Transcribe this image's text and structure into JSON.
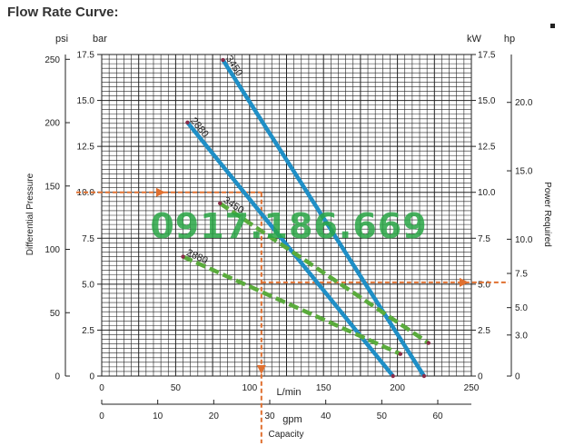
{
  "heading": "Flow Rate Curve:",
  "watermark": "0917.186.669",
  "chart_data": {
    "type": "line",
    "x_axes": [
      {
        "unit": "L/min",
        "min": 0,
        "max": 250,
        "ticks": [
          0,
          50,
          100,
          150,
          200,
          250
        ]
      },
      {
        "unit": "gpm",
        "min": 0,
        "max": 66,
        "ticks": [
          0,
          10,
          20,
          30,
          40,
          50,
          60
        ]
      }
    ],
    "xlabel": "Capacity",
    "left_axes": [
      {
        "unit": "psi",
        "min": 0,
        "max": 253.8,
        "ticks": [
          0,
          50,
          100,
          150,
          200,
          250
        ]
      },
      {
        "unit": "bar",
        "min": 0,
        "max": 17.5,
        "ticks": [
          "0",
          "2.5",
          "5.0",
          "7.5",
          "10.0",
          "12.5",
          "15.0",
          "17.5"
        ]
      }
    ],
    "ylabel_left": "Differential Pressure",
    "right_axes": [
      {
        "unit": "kW",
        "min": 0,
        "max": 17.5,
        "ticks": [
          "0",
          "2.5",
          "5.0",
          "7.5",
          "10.0",
          "12.5",
          "15.0",
          "17.5"
        ]
      },
      {
        "unit": "hp",
        "min": 0,
        "max": 23.5,
        "ticks": [
          "0",
          "3.0",
          "5.0",
          "7.5",
          "10.0",
          "15.0",
          "20.0"
        ]
      }
    ],
    "ylabel_right": "Power Required",
    "grid": true,
    "series": [
      {
        "name": "3450",
        "kind": "pressure",
        "color": "#1f8fc6",
        "x": [
          82,
          218
        ],
        "y": [
          17.2,
          0
        ]
      },
      {
        "name": "2880",
        "kind": "pressure",
        "color": "#1f8fc6",
        "x": [
          58,
          197
        ],
        "y": [
          13.8,
          0
        ]
      },
      {
        "name": "3450",
        "kind": "power",
        "color": "#5aab3c",
        "x": [
          80,
          221
        ],
        "y": [
          9.4,
          1.8
        ]
      },
      {
        "name": "2880",
        "kind": "power",
        "color": "#5aab3c",
        "x": [
          55,
          202
        ],
        "y": [
          6.5,
          1.2
        ]
      }
    ],
    "annotation": {
      "color": "#e07030",
      "flow_lpm": 108,
      "pressure_bar": 10.0,
      "power_kw": 5.1
    }
  }
}
